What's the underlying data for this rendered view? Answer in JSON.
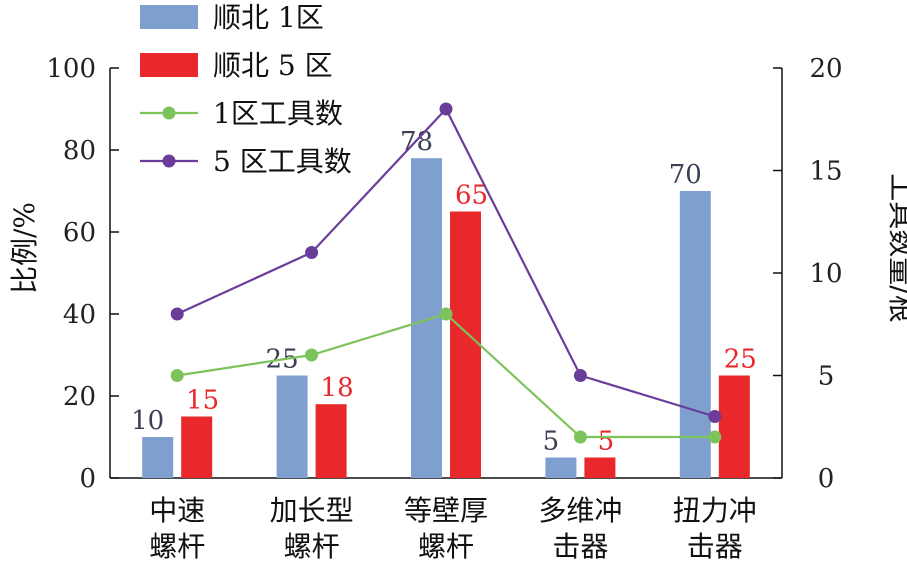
{
  "chart_data": {
    "type": "bar",
    "categories": [
      [
        "中速",
        "螺杆"
      ],
      [
        "加长型",
        "螺杆"
      ],
      [
        "等壁厚",
        "螺杆"
      ],
      [
        "多维冲",
        "击器"
      ],
      [
        "扭力冲",
        "击器"
      ]
    ],
    "ylabel_left": "比例/%",
    "ylabel_right": "工具数量/根",
    "ylim_left": [
      0,
      100
    ],
    "ylim_right": [
      0,
      20
    ],
    "yticks_left": [
      "0",
      "20",
      "40",
      "60",
      "80",
      "100"
    ],
    "yticks_right": [
      "0",
      "5",
      "10",
      "15",
      "20"
    ],
    "legend_position": "top-left",
    "grid": false,
    "bar_series": [
      {
        "name": "顺北 1区",
        "color": "#7f9fcf",
        "values": [
          10,
          25,
          78,
          5,
          70
        ],
        "labels": [
          "10",
          "25",
          "78",
          "5",
          "70"
        ],
        "label_color": "#3a3f55"
      },
      {
        "name": "顺北 5 区",
        "color": "#e8282b",
        "values": [
          15,
          18,
          65,
          5,
          25
        ],
        "labels": [
          "15",
          "18",
          "65",
          "5",
          "25"
        ],
        "label_color": "#e8282b"
      }
    ],
    "line_series": [
      {
        "name": "1区工具数",
        "color": "#7dc35b",
        "axis": "right",
        "values": [
          5,
          6,
          8,
          2,
          2
        ]
      },
      {
        "name": "5 区工具数",
        "color": "#6a3d9a",
        "axis": "right",
        "values": [
          8,
          11,
          18,
          5,
          3
        ]
      }
    ]
  }
}
